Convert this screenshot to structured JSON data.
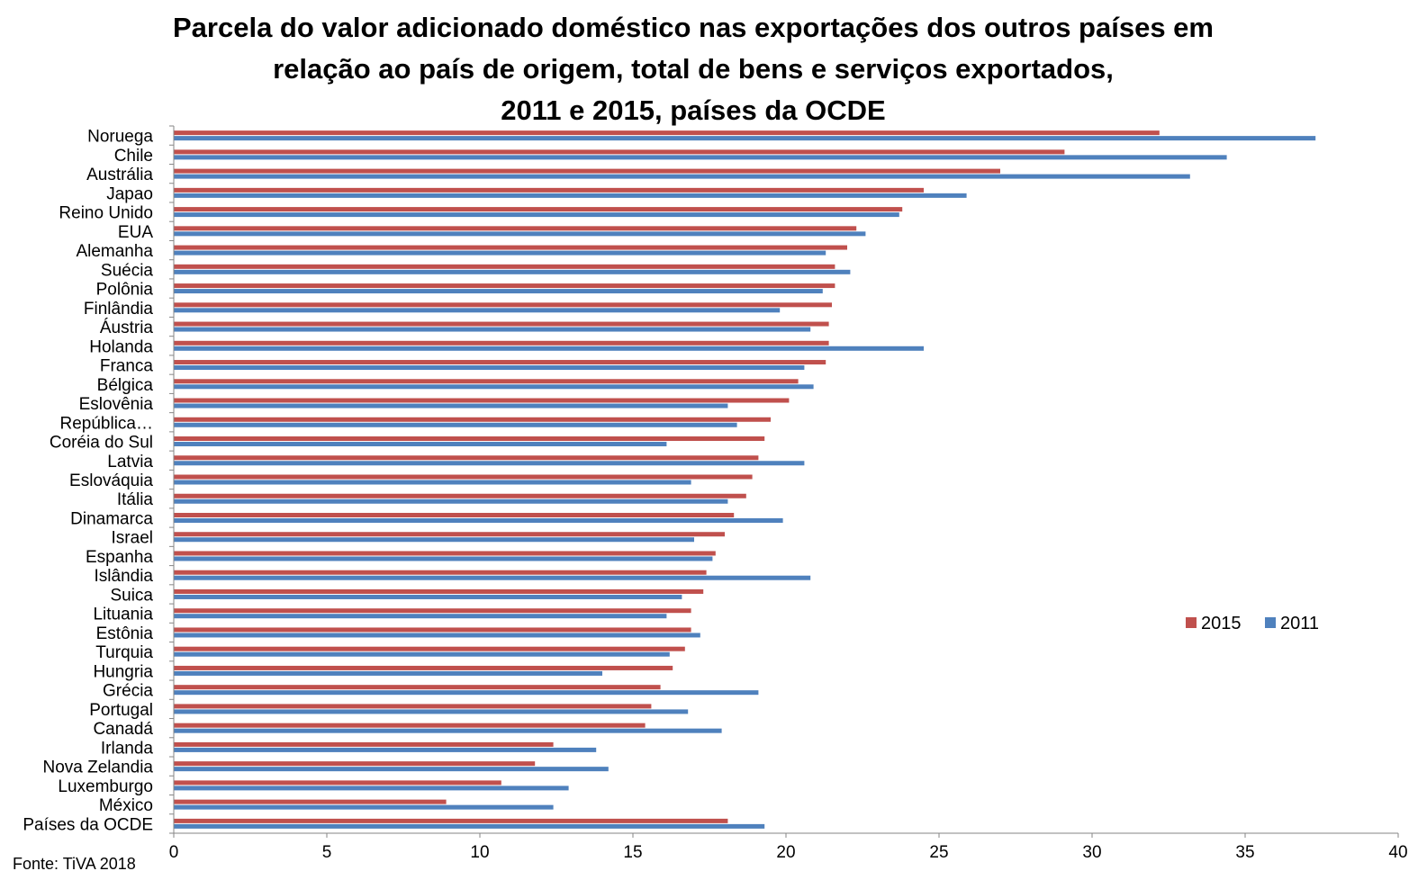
{
  "title_lines": [
    "Parcela do valor adicionado doméstico nas exportações dos outros países em",
    "relação ao país de origem, total de bens e serviços exportados,",
    "2011 e 2015, países da OCDE"
  ],
  "source": "Fonte: TiVA 2018",
  "colors": {
    "s2015": "#C0504D",
    "s2011": "#4F81BD",
    "axis": "#868686"
  },
  "chart_data": {
    "type": "bar",
    "orientation": "horizontal",
    "title": "Parcela do valor adicionado doméstico nas exportações dos outros países em relação ao país de origem, total de bens e serviços exportados, 2011 e 2015, países da OCDE",
    "categories": [
      "Noruega",
      "Chile",
      "Austrália",
      "Japao",
      "Reino Unido",
      "EUA",
      "Alemanha",
      "Suécia",
      "Polônia",
      "Finlândia",
      "Áustria",
      "Holanda",
      "Franca",
      "Bélgica",
      "Eslovênia",
      "República…",
      "Coréia do Sul",
      "Latvia",
      "Eslováquia",
      "Itália",
      "Dinamarca",
      "Israel",
      "Espanha",
      "Islândia",
      "Suica",
      "Lituania",
      "Estônia",
      "Turquia",
      "Hungria",
      "Grécia",
      "Portugal",
      "Canadá",
      "Irlanda",
      "Nova Zelandia",
      "Luxemburgo",
      "México",
      "Países da OCDE"
    ],
    "series": [
      {
        "name": "2015",
        "color": "#C0504D",
        "values": [
          32.2,
          29.1,
          27.0,
          24.5,
          23.8,
          22.3,
          22.0,
          21.6,
          21.6,
          21.5,
          21.4,
          21.4,
          21.3,
          20.4,
          20.1,
          19.5,
          19.3,
          19.1,
          18.9,
          18.7,
          18.3,
          18.0,
          17.7,
          17.4,
          17.3,
          16.9,
          16.9,
          16.7,
          16.3,
          15.9,
          15.6,
          15.4,
          12.4,
          11.8,
          10.7,
          8.9,
          18.1
        ]
      },
      {
        "name": "2011",
        "color": "#4F81BD",
        "values": [
          37.3,
          34.4,
          33.2,
          25.9,
          23.7,
          22.6,
          21.3,
          22.1,
          21.2,
          19.8,
          20.8,
          24.5,
          20.6,
          20.9,
          18.1,
          18.4,
          16.1,
          20.6,
          16.9,
          18.1,
          19.9,
          17.0,
          17.6,
          20.8,
          16.6,
          16.1,
          17.2,
          16.2,
          14.0,
          19.1,
          16.8,
          17.9,
          13.8,
          14.2,
          12.9,
          12.4,
          19.3
        ]
      }
    ],
    "xlim": [
      0,
      40
    ],
    "xticks": [
      0,
      5,
      10,
      15,
      20,
      25,
      30,
      35,
      40
    ],
    "legend_position": "right",
    "grid": false
  }
}
